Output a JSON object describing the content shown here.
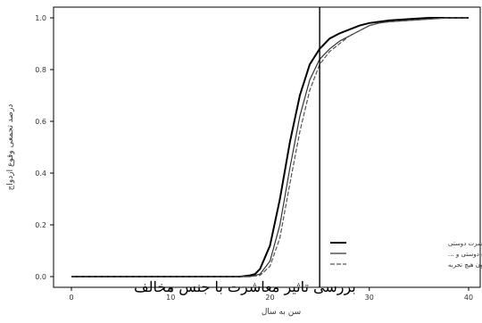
{
  "caption": "بررسی تاثیر معاشرت با جنس مخالف",
  "chart_data": {
    "type": "line",
    "title": "",
    "xlabel": "سن به سال",
    "ylabel": "درصد تجمعی وقوع ازدواج",
    "xlim": [
      0,
      40
    ],
    "ylim": [
      0,
      1.0
    ],
    "xticks": [
      0,
      10,
      20,
      30,
      40
    ],
    "xtick_labels": [
      "0",
      "10",
      "20",
      "30",
      "40"
    ],
    "yticks": [
      0,
      0.2,
      0.4,
      0.6,
      0.8,
      1.0
    ],
    "ytick_labels": [
      "0.0",
      "0.2",
      "0.4",
      "0.6",
      "0.8",
      "1.0"
    ],
    "vline_x": 25,
    "grid": false,
    "legend_position": "bottom-right",
    "series": [
      {
        "name": "فقط تجربه معاشرت دوستی",
        "x": [
          0,
          10,
          17,
          18,
          18.5,
          19,
          20,
          21,
          22,
          23,
          24,
          25,
          26,
          27,
          28,
          29,
          30,
          31,
          32,
          34,
          36,
          38,
          40
        ],
        "y": [
          0,
          0,
          0,
          0.005,
          0.01,
          0.03,
          0.12,
          0.3,
          0.52,
          0.7,
          0.82,
          0.88,
          0.92,
          0.94,
          0.955,
          0.97,
          0.98,
          0.985,
          0.99,
          0.995,
          1.0,
          1.0,
          1.0
        ]
      },
      {
        "name": "تجربه معاشرت دوستی و ...",
        "x": [
          0,
          10,
          17,
          18,
          18.5,
          19,
          20,
          21,
          22,
          23,
          24,
          25,
          26,
          27,
          28,
          29,
          30,
          31,
          32,
          34,
          36,
          38,
          40
        ],
        "y": [
          0,
          0,
          0,
          0,
          0.005,
          0.01,
          0.06,
          0.2,
          0.42,
          0.62,
          0.76,
          0.84,
          0.88,
          0.91,
          0.93,
          0.95,
          0.97,
          0.98,
          0.985,
          0.99,
          0.995,
          1.0,
          1.0
        ]
      },
      {
        "name": "بدون هیچ تجربه",
        "x": [
          0,
          10,
          17,
          18,
          18.5,
          19,
          20,
          21,
          22,
          23,
          24,
          25,
          26,
          27,
          28,
          29,
          30,
          31,
          32,
          34,
          36,
          38,
          40
        ],
        "y": [
          0,
          0,
          0,
          0,
          0.002,
          0.005,
          0.04,
          0.15,
          0.36,
          0.56,
          0.72,
          0.82,
          0.87,
          0.9,
          0.93,
          0.95,
          0.97,
          0.98,
          0.985,
          0.99,
          0.995,
          1.0,
          1.0
        ]
      }
    ]
  }
}
